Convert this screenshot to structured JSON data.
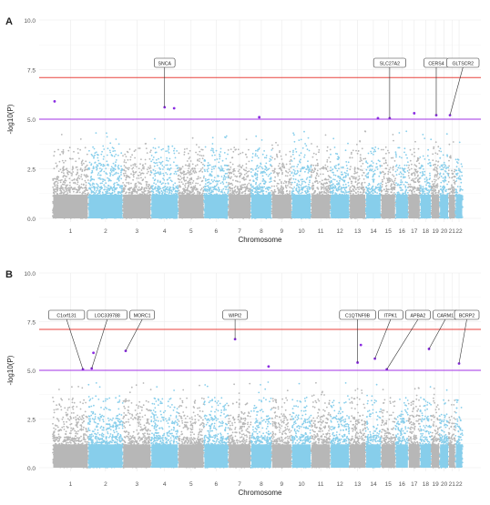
{
  "colors": {
    "odd_chr": "#b7b7b7",
    "even_chr": "#87ceeb",
    "genomewide_line": "#e8433e",
    "suggestive_line": "#a230e6",
    "hit_point": "#8a2be2",
    "grid": "#ebebeb"
  },
  "chromosomes": [
    "1",
    "2",
    "3",
    "4",
    "5",
    "6",
    "7",
    "8",
    "9",
    "10",
    "11",
    "12",
    "13",
    "14",
    "15",
    "16",
    "17",
    "18",
    "19",
    "20",
    "21",
    "22"
  ],
  "chart_data": [
    {
      "panel": "A",
      "type": "scatter",
      "subtype": "manhattan",
      "xlabel": "Chromosome",
      "ylabel": "-log10(P)",
      "ylim": [
        0,
        10
      ],
      "yticks": [
        "0.0",
        "2.5",
        "5.0",
        "7.5",
        "10.0"
      ],
      "xticks": [
        "1",
        "2",
        "3",
        "4",
        "5",
        "6",
        "7",
        "8",
        "9",
        "10",
        "11",
        "12",
        "13",
        "14",
        "15",
        "16",
        "17",
        "18",
        "19",
        "20",
        "21",
        "22"
      ],
      "genomewide_threshold": 7.1,
      "suggestive_threshold": 5.0,
      "grid": true,
      "hits": [
        {
          "chr": 1,
          "pos": 0.05,
          "p": 5.9
        },
        {
          "chr": 4,
          "pos": 0.5,
          "p": 5.6
        },
        {
          "chr": 4,
          "pos": 0.85,
          "p": 5.55
        },
        {
          "chr": 8,
          "pos": 0.4,
          "p": 5.1
        },
        {
          "chr": 14,
          "pos": 0.8,
          "p": 5.05
        },
        {
          "chr": 15,
          "pos": 0.6,
          "p": 5.05
        },
        {
          "chr": 17,
          "pos": 0.5,
          "p": 5.3
        },
        {
          "chr": 19,
          "pos": 0.6,
          "p": 5.2
        },
        {
          "chr": 21,
          "pos": 0.2,
          "p": 5.2
        }
      ],
      "gene_labels": [
        {
          "text": "SNCA",
          "chr": 4,
          "pos": 0.5,
          "p": 5.6
        },
        {
          "text": "SLC27A2",
          "chr": 15,
          "pos": 0.6,
          "p": 5.05
        },
        {
          "text": "CERS4",
          "chr": 19,
          "pos": 0.6,
          "p": 5.2
        },
        {
          "text": "GLTSCR2",
          "chr": 21,
          "pos": 0.2,
          "p": 5.2
        }
      ]
    },
    {
      "panel": "B",
      "type": "scatter",
      "subtype": "manhattan",
      "xlabel": "Chromosome",
      "ylabel": "-log10(P)",
      "ylim": [
        0,
        10
      ],
      "yticks": [
        "0.0",
        "2.5",
        "5.0",
        "7.5",
        "10.0"
      ],
      "xticks": [
        "1",
        "2",
        "3",
        "4",
        "5",
        "6",
        "7",
        "8",
        "9",
        "10",
        "11",
        "12",
        "13",
        "14",
        "15",
        "16",
        "17",
        "18",
        "19",
        "20",
        "21",
        "22"
      ],
      "genomewide_threshold": 7.1,
      "suggestive_threshold": 5.0,
      "grid": true,
      "hits": [
        {
          "chr": 1,
          "pos": 0.85,
          "p": 5.05
        },
        {
          "chr": 2,
          "pos": 0.1,
          "p": 5.1
        },
        {
          "chr": 2,
          "pos": 0.15,
          "p": 5.9
        },
        {
          "chr": 3,
          "pos": 0.1,
          "p": 6.0
        },
        {
          "chr": 7,
          "pos": 0.3,
          "p": 6.6
        },
        {
          "chr": 8,
          "pos": 0.85,
          "p": 5.2
        },
        {
          "chr": 13,
          "pos": 0.5,
          "p": 5.4
        },
        {
          "chr": 13,
          "pos": 0.7,
          "p": 6.3
        },
        {
          "chr": 14,
          "pos": 0.6,
          "p": 5.6
        },
        {
          "chr": 15,
          "pos": 0.4,
          "p": 5.05
        },
        {
          "chr": 18,
          "pos": 0.8,
          "p": 6.1
        },
        {
          "chr": 22,
          "pos": 0.5,
          "p": 5.35
        }
      ],
      "gene_labels": [
        {
          "text": "C1orf131",
          "chr": 1,
          "pos": 0.85,
          "p": 5.05
        },
        {
          "text": "LOC339788",
          "chr": 2,
          "pos": 0.1,
          "p": 5.1
        },
        {
          "text": "MORC1",
          "chr": 3,
          "pos": 0.1,
          "p": 6.0
        },
        {
          "text": "WIPI2",
          "chr": 7,
          "pos": 0.3,
          "p": 6.6
        },
        {
          "text": "C1QTNF9B",
          "chr": 13,
          "pos": 0.5,
          "p": 5.4
        },
        {
          "text": "ITPK1",
          "chr": 14,
          "pos": 0.6,
          "p": 5.6
        },
        {
          "text": "APBA2",
          "chr": 15,
          "pos": 0.4,
          "p": 5.05
        },
        {
          "text": "CARM1",
          "chr": 18,
          "pos": 0.8,
          "p": 6.1
        },
        {
          "text": "BCRP2",
          "chr": 22,
          "pos": 0.5,
          "p": 5.35
        }
      ]
    }
  ]
}
